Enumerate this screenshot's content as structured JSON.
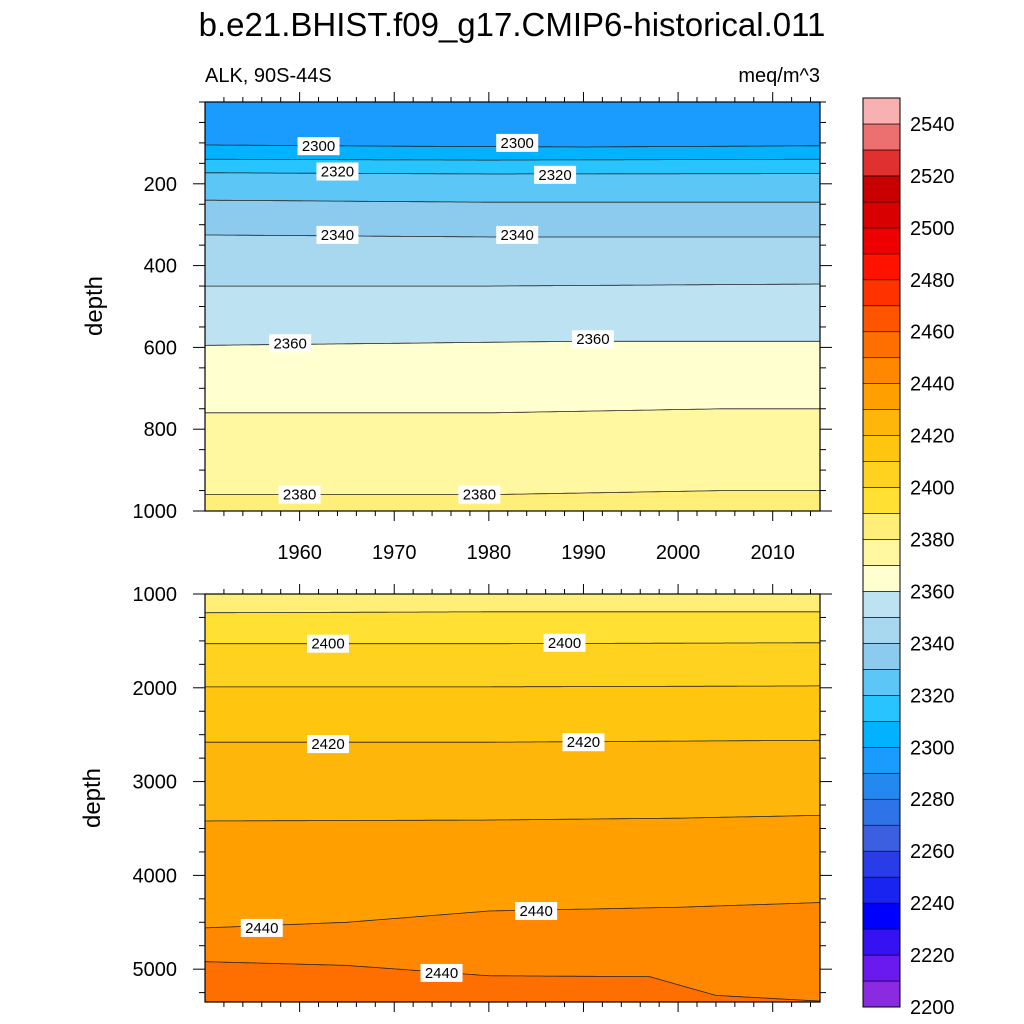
{
  "title": "b.e21.BHIST.f09_g17.CMIP6-historical.011",
  "left_label": "ALK, 90S-44S",
  "right_label": "meq/m^3",
  "colorbar": {
    "colors": [
      "#8a2be2",
      "#6a1aee",
      "#3412f2",
      "#0000ff",
      "#1a24f0",
      "#2a3ce8",
      "#3b5fe0",
      "#2f73e8",
      "#2389f0",
      "#1a9cff",
      "#00b2ff",
      "#28c4ff",
      "#5cc7f6",
      "#8ccbee",
      "#a8d8f0",
      "#bde3f2",
      "#ffffd0",
      "#fff8a0",
      "#ffef78",
      "#ffe033",
      "#ffd21f",
      "#ffc50f",
      "#ffb60a",
      "#ff9f00",
      "#ff8800",
      "#ff6f00",
      "#ff5400",
      "#ff3300",
      "#ff1200",
      "#ee0000",
      "#d80000",
      "#c80000",
      "#e03030",
      "#ec7070",
      "#f8b0b0"
    ],
    "levels": [
      2200,
      2210,
      2220,
      2230,
      2240,
      2250,
      2260,
      2270,
      2280,
      2290,
      2300,
      2310,
      2320,
      2330,
      2340,
      2350,
      2360,
      2370,
      2380,
      2390,
      2400,
      2410,
      2420,
      2430,
      2440,
      2450,
      2460,
      2470,
      2480,
      2490,
      2500,
      2510,
      2520,
      2530,
      2540,
      2550
    ],
    "tick_labels": [
      "2200",
      "2220",
      "2240",
      "2260",
      "2280",
      "2300",
      "2320",
      "2340",
      "2360",
      "2380",
      "2400",
      "2420",
      "2440",
      "2460",
      "2480",
      "2500",
      "2520",
      "2540"
    ]
  },
  "chart_data": [
    {
      "type": "contour",
      "panel": "upper",
      "ylabel": "depth",
      "xlim": [
        1950,
        2015
      ],
      "ylim": [
        1000,
        0
      ],
      "x_tick_labels": [
        "1960",
        "1970",
        "1980",
        "1990",
        "2000",
        "2010"
      ],
      "y_tick_labels": [
        "200",
        "400",
        "600",
        "800",
        "1000"
      ],
      "contours": [
        {
          "level": 2300,
          "x": [
            1950,
            1970,
            1990,
            2015
          ],
          "depth": [
            105,
            108,
            110,
            107
          ]
        },
        {
          "level": 2310,
          "x": [
            1950,
            1980,
            2015
          ],
          "depth": [
            140,
            142,
            140
          ]
        },
        {
          "level": 2320,
          "x": [
            1950,
            1980,
            2015
          ],
          "depth": [
            173,
            176,
            175
          ]
        },
        {
          "level": 2330,
          "x": [
            1950,
            1980,
            2015
          ],
          "depth": [
            240,
            245,
            245
          ]
        },
        {
          "level": 2340,
          "x": [
            1950,
            1980,
            2015
          ],
          "depth": [
            325,
            330,
            330
          ]
        },
        {
          "level": 2350,
          "x": [
            1950,
            1980,
            2015
          ],
          "depth": [
            450,
            450,
            445
          ]
        },
        {
          "level": 2360,
          "x": [
            1950,
            1970,
            1990,
            2015
          ],
          "depth": [
            595,
            590,
            585,
            585
          ]
        },
        {
          "level": 2370,
          "x": [
            1950,
            1980,
            2005,
            2015
          ],
          "depth": [
            760,
            760,
            750,
            750
          ]
        },
        {
          "level": 2380,
          "x": [
            1950,
            1980,
            2005,
            2015
          ],
          "depth": [
            960,
            960,
            950,
            950
          ]
        }
      ],
      "contour_labels": [
        {
          "text": "2300",
          "x": 1962,
          "depth": 108
        },
        {
          "text": "2300",
          "x": 1983,
          "depth": 100
        },
        {
          "text": "2320",
          "x": 1964,
          "depth": 170
        },
        {
          "text": "2320",
          "x": 1987,
          "depth": 178
        },
        {
          "text": "2340",
          "x": 1964,
          "depth": 325
        },
        {
          "text": "2340",
          "x": 1983,
          "depth": 325
        },
        {
          "text": "2360",
          "x": 1959,
          "depth": 590
        },
        {
          "text": "2360",
          "x": 1991,
          "depth": 580
        },
        {
          "text": "2380",
          "x": 1960,
          "depth": 960
        },
        {
          "text": "2380",
          "x": 1979,
          "depth": 960
        }
      ]
    },
    {
      "type": "contour",
      "panel": "lower",
      "ylabel": "depth",
      "xlim": [
        1950,
        2015
      ],
      "ylim": [
        5350,
        1000
      ],
      "y_tick_labels": [
        "1000",
        "2000",
        "3000",
        "4000",
        "5000"
      ],
      "contours": [
        {
          "level": 2390,
          "x": [
            1950,
            1980,
            2015
          ],
          "depth": [
            1200,
            1190,
            1190
          ]
        },
        {
          "level": 2400,
          "x": [
            1950,
            1980,
            2015
          ],
          "depth": [
            1530,
            1530,
            1520
          ]
        },
        {
          "level": 2410,
          "x": [
            1950,
            1980,
            2015
          ],
          "depth": [
            1990,
            1990,
            1980
          ]
        },
        {
          "level": 2420,
          "x": [
            1950,
            1980,
            2015
          ],
          "depth": [
            2580,
            2580,
            2560
          ]
        },
        {
          "level": 2430,
          "x": [
            1950,
            1980,
            2000,
            2015
          ],
          "depth": [
            3420,
            3410,
            3390,
            3360
          ]
        },
        {
          "level": 2440,
          "x": [
            1950,
            1965,
            1980,
            2000,
            2015
          ],
          "depth": [
            4560,
            4500,
            4380,
            4340,
            4290
          ]
        },
        {
          "level": 2450,
          "x": [
            1950,
            1965,
            1980,
            1997,
            2004,
            2015
          ],
          "depth": [
            4920,
            4960,
            5070,
            5080,
            5280,
            5340
          ]
        }
      ],
      "contour_labels": [
        {
          "text": "2400",
          "x": 1963,
          "depth": 1530
        },
        {
          "text": "2400",
          "x": 1988,
          "depth": 1520
        },
        {
          "text": "2420",
          "x": 1963,
          "depth": 2600
        },
        {
          "text": "2420",
          "x": 1990,
          "depth": 2580
        },
        {
          "text": "2440",
          "x": 1956,
          "depth": 4560
        },
        {
          "text": "2440",
          "x": 1985,
          "depth": 4380
        },
        {
          "text": "2440",
          "x": 1975,
          "depth": 5040
        }
      ]
    }
  ]
}
